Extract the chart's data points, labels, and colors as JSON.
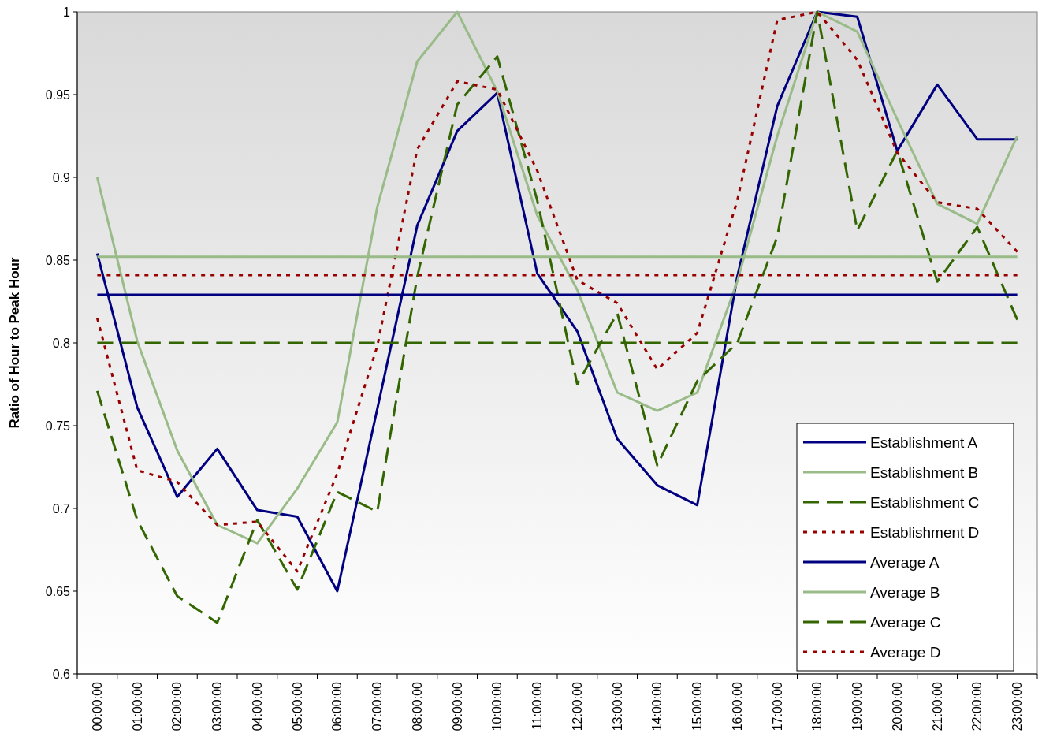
{
  "chart_data": {
    "type": "line",
    "ylabel": "Ratio of Hour to Peak Hour",
    "categories": [
      "00:00:00",
      "01:00:00",
      "02:00:00",
      "03:00:00",
      "04:00:00",
      "05:00:00",
      "06:00:00",
      "07:00:00",
      "08:00:00",
      "09:00:00",
      "10:00:00",
      "11:00:00",
      "12:00:00",
      "13:00:00",
      "14:00:00",
      "15:00:00",
      "16:00:00",
      "17:00:00",
      "18:00:00",
      "19:00:00",
      "20:00:00",
      "21:00:00",
      "22:00:00",
      "23:00:00"
    ],
    "ylim": [
      0.6,
      1
    ],
    "yticks": [
      0.6,
      0.65,
      0.7,
      0.75,
      0.8,
      0.85,
      0.9,
      0.95,
      1
    ],
    "grid": false,
    "legend": "bottom right",
    "marker": "none",
    "series": [
      {
        "name": "Establishment A",
        "color": "#000080",
        "line_style": "solid",
        "values": [
          0.854,
          0.761,
          0.707,
          0.736,
          0.699,
          0.695,
          0.65,
          0.76,
          0.871,
          0.928,
          0.951,
          0.842,
          0.807,
          0.742,
          0.714,
          0.702,
          0.84,
          0.943,
          1.0,
          0.997,
          0.916,
          0.956,
          0.923,
          0.923
        ]
      },
      {
        "name": "Establishment B",
        "color": "#99bb88",
        "line_style": "solid",
        "values": [
          0.9,
          0.801,
          0.735,
          0.69,
          0.679,
          0.712,
          0.752,
          0.882,
          0.97,
          1.0,
          0.952,
          0.877,
          0.832,
          0.77,
          0.759,
          0.77,
          0.837,
          0.925,
          1.0,
          0.988,
          0.935,
          0.884,
          0.872,
          0.925
        ]
      },
      {
        "name": "Establishment C",
        "color": "#336600",
        "line_style": "dashed",
        "values": [
          0.771,
          0.693,
          0.647,
          0.631,
          0.693,
          0.651,
          0.71,
          0.698,
          0.84,
          0.944,
          0.973,
          0.886,
          0.775,
          0.818,
          0.726,
          0.777,
          0.8,
          0.864,
          1.0,
          0.868,
          0.916,
          0.837,
          0.87,
          0.814
        ]
      },
      {
        "name": "Establishment D",
        "color": "#990000",
        "line_style": "dotted",
        "values": [
          0.815,
          0.723,
          0.716,
          0.69,
          0.692,
          0.662,
          0.721,
          0.798,
          0.917,
          0.958,
          0.953,
          0.904,
          0.838,
          0.824,
          0.784,
          0.806,
          0.886,
          0.995,
          1.0,
          0.971,
          0.915,
          0.885,
          0.881,
          0.855
        ]
      },
      {
        "name": "Average A",
        "color": "#000080",
        "line_style": "solid",
        "values": [
          0.829,
          0.829,
          0.829,
          0.829,
          0.829,
          0.829,
          0.829,
          0.829,
          0.829,
          0.829,
          0.829,
          0.829,
          0.829,
          0.829,
          0.829,
          0.829,
          0.829,
          0.829,
          0.829,
          0.829,
          0.829,
          0.829,
          0.829,
          0.829
        ]
      },
      {
        "name": "Average B",
        "color": "#99bb88",
        "line_style": "solid",
        "values": [
          0.852,
          0.852,
          0.852,
          0.852,
          0.852,
          0.852,
          0.852,
          0.852,
          0.852,
          0.852,
          0.852,
          0.852,
          0.852,
          0.852,
          0.852,
          0.852,
          0.852,
          0.852,
          0.852,
          0.852,
          0.852,
          0.852,
          0.852,
          0.852
        ]
      },
      {
        "name": "Average C",
        "color": "#336600",
        "line_style": "dashed",
        "values": [
          0.8,
          0.8,
          0.8,
          0.8,
          0.8,
          0.8,
          0.8,
          0.8,
          0.8,
          0.8,
          0.8,
          0.8,
          0.8,
          0.8,
          0.8,
          0.8,
          0.8,
          0.8,
          0.8,
          0.8,
          0.8,
          0.8,
          0.8,
          0.8
        ]
      },
      {
        "name": "Average D",
        "color": "#990000",
        "line_style": "dotted",
        "values": [
          0.841,
          0.841,
          0.841,
          0.841,
          0.841,
          0.841,
          0.841,
          0.841,
          0.841,
          0.841,
          0.841,
          0.841,
          0.841,
          0.841,
          0.841,
          0.841,
          0.841,
          0.841,
          0.841,
          0.841,
          0.841,
          0.841,
          0.841,
          0.841
        ]
      }
    ]
  }
}
